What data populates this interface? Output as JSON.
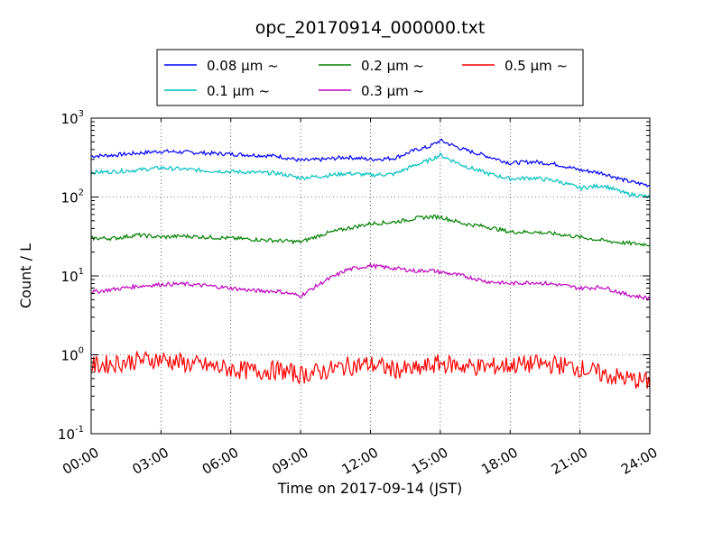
{
  "chart_data": {
    "type": "line",
    "title": "opc_20170914_000000.txt",
    "xlabel": "Time on 2017-09-14 (JST)",
    "ylabel": "Count / L",
    "y_scale": "log",
    "ylim": [
      0.1,
      1000
    ],
    "xlim": [
      "00:00",
      "24:00"
    ],
    "x_ticks": [
      "00:00",
      "03:00",
      "06:00",
      "09:00",
      "12:00",
      "15:00",
      "18:00",
      "21:00",
      "24:00"
    ],
    "y_ticks": [
      {
        "base": "10",
        "exp": "-1"
      },
      {
        "base": "10",
        "exp": "0"
      },
      {
        "base": "10",
        "exp": "1"
      },
      {
        "base": "10",
        "exp": "2"
      },
      {
        "base": "10",
        "exp": "3"
      }
    ],
    "grid": true,
    "legend_position": "top-center",
    "x": [
      "00:00",
      "01:00",
      "02:00",
      "03:00",
      "04:00",
      "05:00",
      "06:00",
      "07:00",
      "08:00",
      "09:00",
      "10:00",
      "11:00",
      "12:00",
      "13:00",
      "14:00",
      "14:30",
      "15:00",
      "16:00",
      "17:00",
      "18:00",
      "19:00",
      "20:00",
      "21:00",
      "22:00",
      "23:00",
      "24:00"
    ],
    "series": [
      {
        "name": "0.08 μm ~",
        "color": "#0000ff",
        "values": [
          330,
          340,
          360,
          380,
          370,
          360,
          350,
          340,
          330,
          290,
          300,
          320,
          300,
          310,
          400,
          430,
          520,
          400,
          330,
          270,
          280,
          260,
          220,
          200,
          160,
          140
        ]
      },
      {
        "name": "0.1 μm ~",
        "color": "#00bfbf",
        "values": [
          205,
          210,
          220,
          235,
          225,
          215,
          210,
          205,
          200,
          175,
          185,
          200,
          190,
          195,
          260,
          290,
          340,
          250,
          200,
          170,
          175,
          160,
          130,
          140,
          110,
          100
        ]
      },
      {
        "name": "0.2 μm ~",
        "color": "#008000",
        "values": [
          30,
          30,
          33,
          31,
          32,
          31,
          30,
          29,
          28,
          27,
          34,
          40,
          46,
          48,
          54,
          56,
          56,
          46,
          42,
          36,
          36,
          34,
          31,
          28,
          26,
          25
        ]
      },
      {
        "name": "0.3 μm ~",
        "color": "#bf00bf",
        "values": [
          6.2,
          6.8,
          7.4,
          7.8,
          7.9,
          7.5,
          7.0,
          6.5,
          6.4,
          5.6,
          8.5,
          12.0,
          13.5,
          12.5,
          11.5,
          11.8,
          11.2,
          10.0,
          8.5,
          8.0,
          8.3,
          7.8,
          7.0,
          7.2,
          5.8,
          5.2
        ]
      },
      {
        "name": "0.5 μm ~",
        "color": "#ff0000",
        "values": [
          0.72,
          0.78,
          0.85,
          0.88,
          0.78,
          0.72,
          0.66,
          0.62,
          0.64,
          0.56,
          0.62,
          0.72,
          0.76,
          0.65,
          0.64,
          0.72,
          0.78,
          0.72,
          0.7,
          0.74,
          0.76,
          0.75,
          0.68,
          0.56,
          0.5,
          0.45
        ]
      }
    ]
  }
}
